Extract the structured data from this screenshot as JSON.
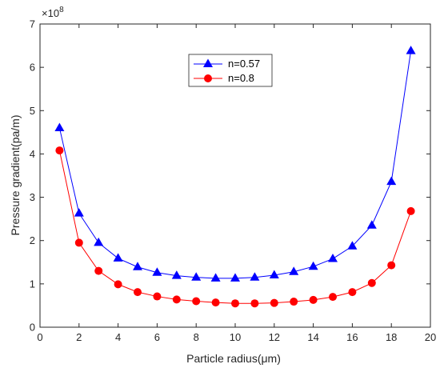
{
  "chart_data": {
    "type": "line",
    "xlabel": "Particle radius(μm)",
    "ylabel": "Pressure gradient(pa/m)",
    "xlim": [
      0,
      20
    ],
    "ylim": [
      0,
      7
    ],
    "xticks": [
      "0",
      "2",
      "4",
      "6",
      "8",
      "10",
      "12",
      "14",
      "16",
      "18",
      "20"
    ],
    "yticks": [
      "0",
      "1",
      "2",
      "3",
      "4",
      "5",
      "6",
      "7"
    ],
    "y_multiplier": "×10",
    "y_exponent": "8",
    "grid": false,
    "legend_position": "top-center",
    "series": [
      {
        "name": "n=0.57",
        "color": "#0000ff",
        "marker": "triangle",
        "x": [
          1,
          2,
          3,
          4,
          5,
          6,
          7,
          8,
          9,
          10,
          11,
          12,
          13,
          14,
          15,
          16,
          17,
          18,
          19
        ],
        "y": [
          4.6,
          2.63,
          1.95,
          1.59,
          1.39,
          1.26,
          1.19,
          1.15,
          1.13,
          1.13,
          1.15,
          1.2,
          1.28,
          1.4,
          1.58,
          1.87,
          2.35,
          3.36,
          6.38
        ]
      },
      {
        "name": "n=0.8",
        "color": "#ff0000",
        "marker": "circle",
        "x": [
          1,
          2,
          3,
          4,
          5,
          6,
          7,
          8,
          9,
          10,
          11,
          12,
          13,
          14,
          15,
          16,
          17,
          18,
          19
        ],
        "y": [
          4.08,
          1.95,
          1.3,
          0.99,
          0.81,
          0.71,
          0.64,
          0.6,
          0.57,
          0.55,
          0.55,
          0.56,
          0.59,
          0.63,
          0.7,
          0.81,
          1.02,
          1.43,
          2.68
        ]
      }
    ]
  }
}
